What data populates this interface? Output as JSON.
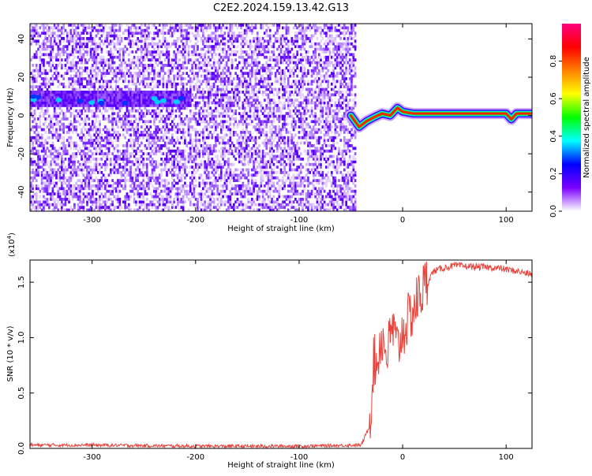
{
  "title": "C2E2.2024.159.13.42.G13",
  "chart_data": [
    {
      "type": "heatmap",
      "xlabel": "Height of straight line (km)",
      "ylabel": "Frequency (Hz)",
      "xlim": [
        -360,
        125
      ],
      "ylim": [
        -50,
        48
      ],
      "xticks": [
        -300,
        -200,
        -100,
        0,
        100
      ],
      "yticks": [
        -40,
        -20,
        0,
        20,
        40
      ],
      "colorbar": {
        "label": "Normalized spectral amplitude",
        "range": [
          0,
          1
        ],
        "ticks": [
          "0.0",
          "0.2",
          "0.4",
          "0.6",
          "0.8"
        ],
        "tick_values": [
          0,
          0.2,
          0.4,
          0.6,
          0.8
        ],
        "colors": [
          "#ffffff",
          "#7b00ff",
          "#0000ff",
          "#00ffff",
          "#00ff00",
          "#ffff00",
          "#ff8000",
          "#ff0000",
          "#ff0080"
        ]
      },
      "features": {
        "noise_x_range": [
          -360,
          -45
        ],
        "weak_band": {
          "x_range": [
            -360,
            -205
          ],
          "frequency": 8
        },
        "strong_band": {
          "x": [
            -50,
            -42,
            -35,
            -28,
            -20,
            -12,
            -5,
            0,
            10,
            40,
            80,
            100,
            105,
            110,
            125
          ],
          "frequency": [
            0,
            -6,
            -3,
            -1,
            1,
            0,
            4,
            2,
            1,
            1,
            1,
            1,
            -2,
            1,
            1
          ]
        }
      }
    },
    {
      "type": "line",
      "xlabel": "Height of straight line (km)",
      "ylabel": "SNR (10 * v/v)",
      "scale_label": "(x10",
      "scale_exp": "4",
      "scale_close": ")",
      "xlim": [
        -360,
        125
      ],
      "ylim": [
        0,
        1.7
      ],
      "xticks": [
        -300,
        -200,
        -100,
        0,
        100
      ],
      "yticks": [
        "0.0",
        "0.5",
        "1.0",
        "1.5"
      ],
      "ytick_values": [
        0,
        0.5,
        1.0,
        1.5
      ],
      "line_color": "#e8413a",
      "series": [
        {
          "x": [
            -360,
            -300,
            -200,
            -100,
            -40,
            -32,
            -28,
            -25,
            -22,
            -20,
            -15,
            -10,
            -5,
            0,
            5,
            10,
            15,
            20,
            30,
            40,
            50,
            70,
            90,
            110,
            125
          ],
          "values": [
            0.03,
            0.03,
            0.02,
            0.02,
            0.03,
            0.2,
            0.8,
            0.75,
            0.95,
            1.0,
            0.85,
            1.1,
            0.9,
            1.05,
            1.15,
            1.25,
            1.35,
            1.45,
            1.6,
            1.63,
            1.65,
            1.64,
            1.63,
            1.6,
            1.57
          ]
        }
      ]
    }
  ]
}
